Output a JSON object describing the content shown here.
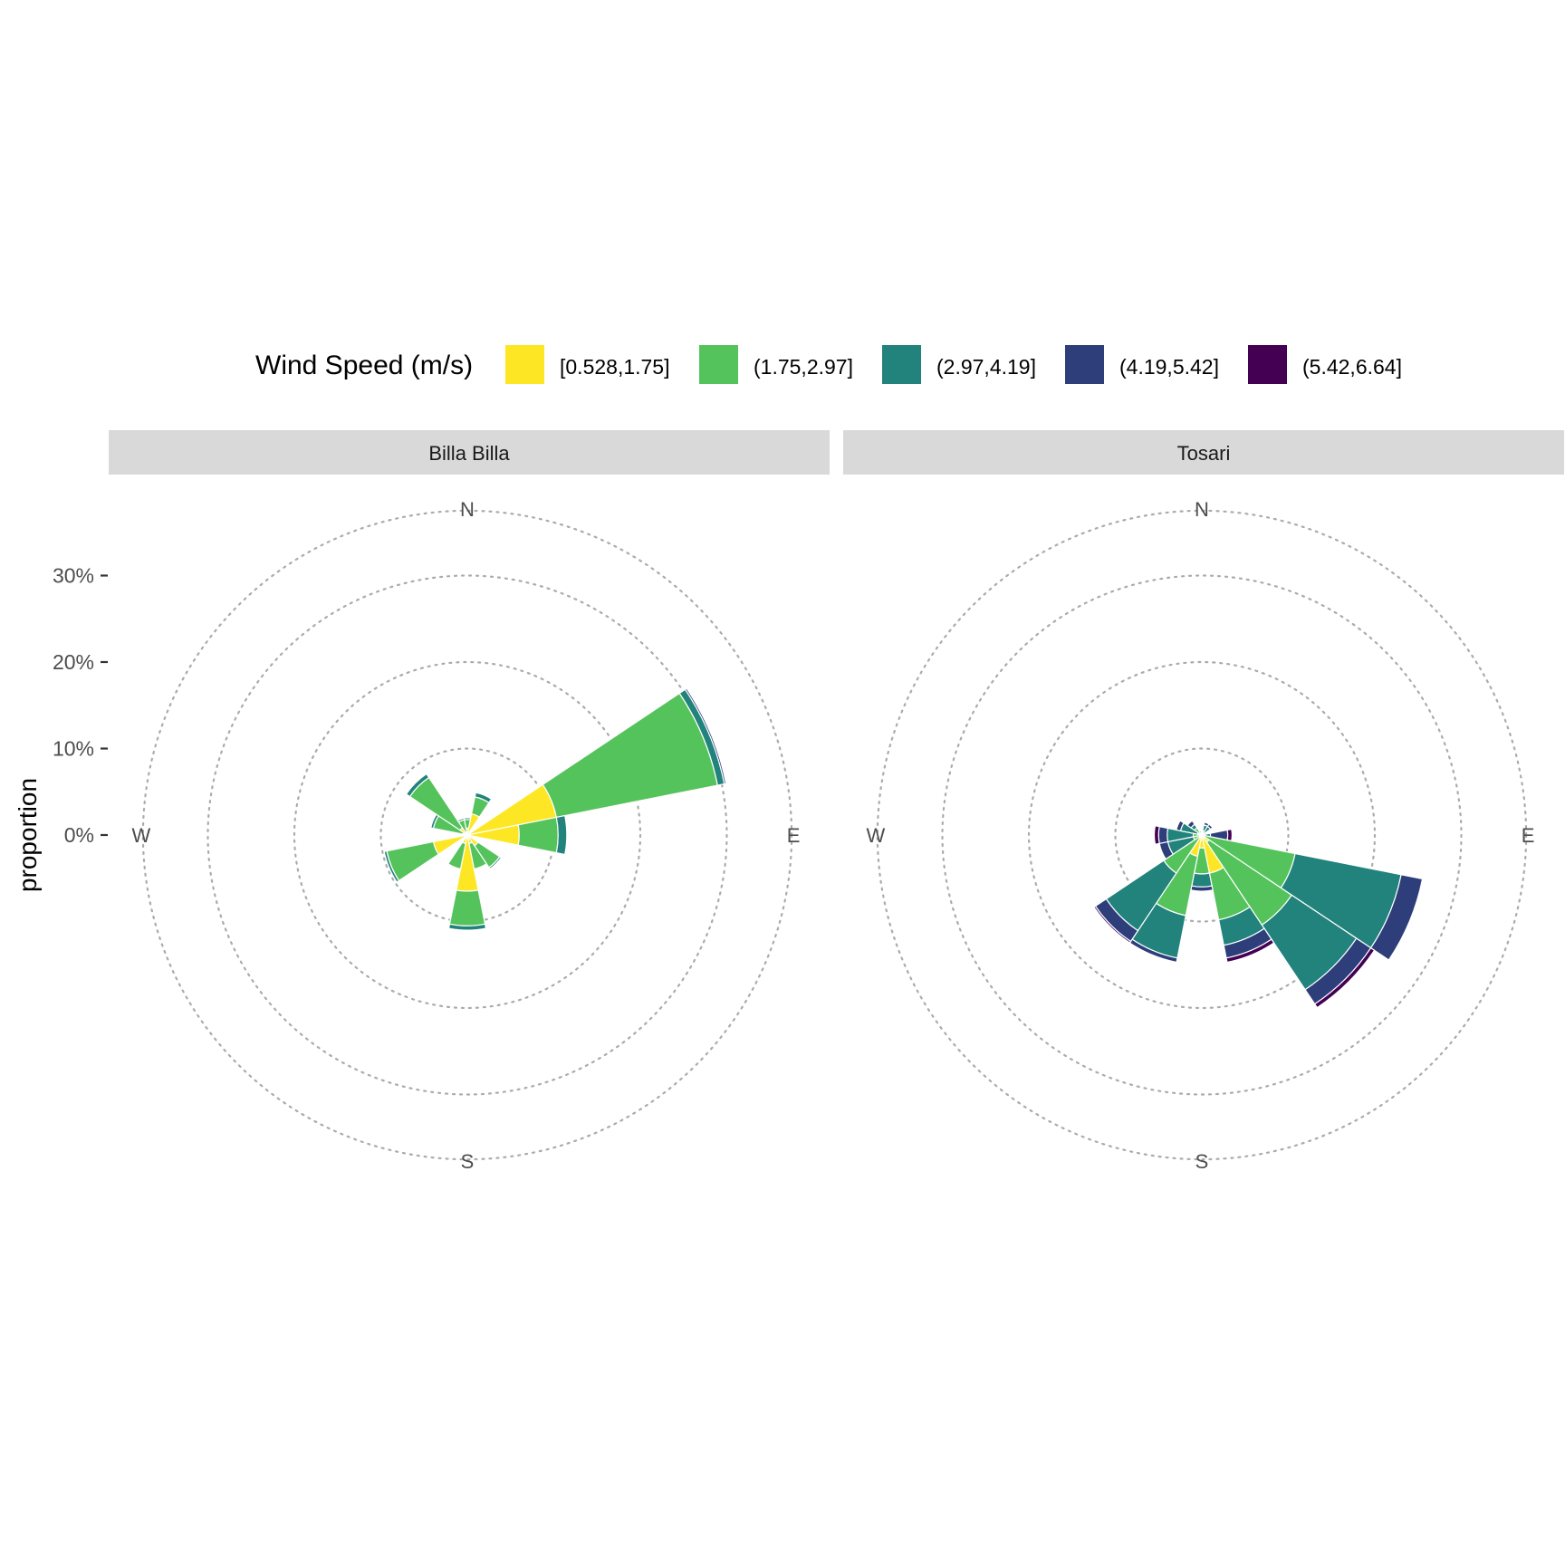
{
  "chart_data": {
    "type": "wind-rose",
    "legend": {
      "title": "Wind Speed (m/s)",
      "position": "top",
      "bins": [
        {
          "label": "[0.528,1.75]",
          "color": "#FDE725"
        },
        {
          "label": "(1.75,2.97]",
          "color": "#55C35B"
        },
        {
          "label": "(2.97,4.19]",
          "color": "#21837C"
        },
        {
          "label": "(4.19,5.42]",
          "color": "#2D3E7B"
        },
        {
          "label": "(5.42,6.64]",
          "color": "#440154"
        }
      ]
    },
    "ylabel": "proportion",
    "y_ticks": [
      "0%",
      "10%",
      "20%",
      "30%"
    ],
    "y_tick_values": [
      0,
      10,
      20,
      30
    ],
    "ylim": [
      0,
      37.5
    ],
    "grid_rings": [
      0,
      10,
      20,
      30,
      37.5
    ],
    "grid": "dotted circles",
    "directions": [
      "N",
      "E",
      "S",
      "W"
    ],
    "sector_width_deg": 22.5,
    "panels": [
      {
        "name": "Billa Billa",
        "sectors": [
          {
            "dir": 0,
            "values": [
              0.8,
              1.0,
              0.2,
              0,
              0
            ]
          },
          {
            "dir": 22.5,
            "values": [
              2.5,
              2.0,
              0.5,
              0,
              0
            ]
          },
          {
            "dir": 67.5,
            "values": [
              10.5,
              19.0,
              0.8,
              0.2,
              0
            ]
          },
          {
            "dir": 90,
            "values": [
              6.0,
              4.5,
              1.0,
              0,
              0
            ]
          },
          {
            "dir": 135,
            "values": [
              1.5,
              3.0,
              0.2,
              0,
              0
            ]
          },
          {
            "dir": 157.5,
            "values": [
              1.0,
              3.0,
              0,
              0,
              0
            ]
          },
          {
            "dir": 180,
            "values": [
              6.5,
              4.0,
              0.5,
              0,
              0
            ]
          },
          {
            "dir": 202.5,
            "values": [
              1.0,
              3.0,
              0,
              0,
              0
            ]
          },
          {
            "dir": 247.5,
            "values": [
              4.0,
              5.5,
              0.3,
              0,
              0
            ]
          },
          {
            "dir": 292.5,
            "values": [
              0.5,
              3.5,
              0.3,
              0,
              0
            ]
          },
          {
            "dir": 315,
            "values": [
              1.0,
              7.0,
              0.5,
              0,
              0
            ]
          },
          {
            "dir": 337.5,
            "values": [
              0.3,
              1.5,
              0.2,
              0,
              0
            ]
          }
        ]
      },
      {
        "name": "Tosari",
        "sectors": [
          {
            "dir": 22.5,
            "values": [
              0,
              0.5,
              0.7,
              0.3,
              0
            ]
          },
          {
            "dir": 45,
            "values": [
              0,
              0,
              1.2,
              0.3,
              0
            ]
          },
          {
            "dir": 67.5,
            "values": [
              0,
              0,
              0.3,
              0.2,
              0
            ]
          },
          {
            "dir": 90,
            "values": [
              0,
              0,
              1.0,
              2.0,
              0.5
            ]
          },
          {
            "dir": 112.5,
            "values": [
              0,
              11.0,
              12.5,
              2.5,
              0
            ]
          },
          {
            "dir": 135,
            "values": [
              1.0,
              11.5,
              9.0,
              2.0,
              0.5
            ]
          },
          {
            "dir": 157.5,
            "values": [
              4.5,
              5.5,
              3.0,
              1.5,
              0.5
            ]
          },
          {
            "dir": 180,
            "values": [
              1.5,
              3.0,
              1.5,
              0.5,
              0
            ]
          },
          {
            "dir": 202.5,
            "values": [
              2.5,
              7.0,
              5.0,
              0.5,
              0
            ]
          },
          {
            "dir": 225,
            "values": [
              0.3,
              5.0,
              8.0,
              1.5,
              0.2
            ]
          },
          {
            "dir": 247.5,
            "values": [
              0,
              1.0,
              3.0,
              1.0,
              0
            ]
          },
          {
            "dir": 270,
            "values": [
              0,
              1.0,
              3.0,
              1.0,
              0.5
            ]
          },
          {
            "dir": 292.5,
            "values": [
              0,
              0.5,
              2.0,
              0.5,
              0
            ]
          },
          {
            "dir": 315,
            "values": [
              0,
              1.0,
              0.5,
              0.5,
              0
            ]
          },
          {
            "dir": 337.5,
            "values": [
              0,
              0,
              0.3,
              0.2,
              0
            ]
          }
        ]
      }
    ]
  }
}
